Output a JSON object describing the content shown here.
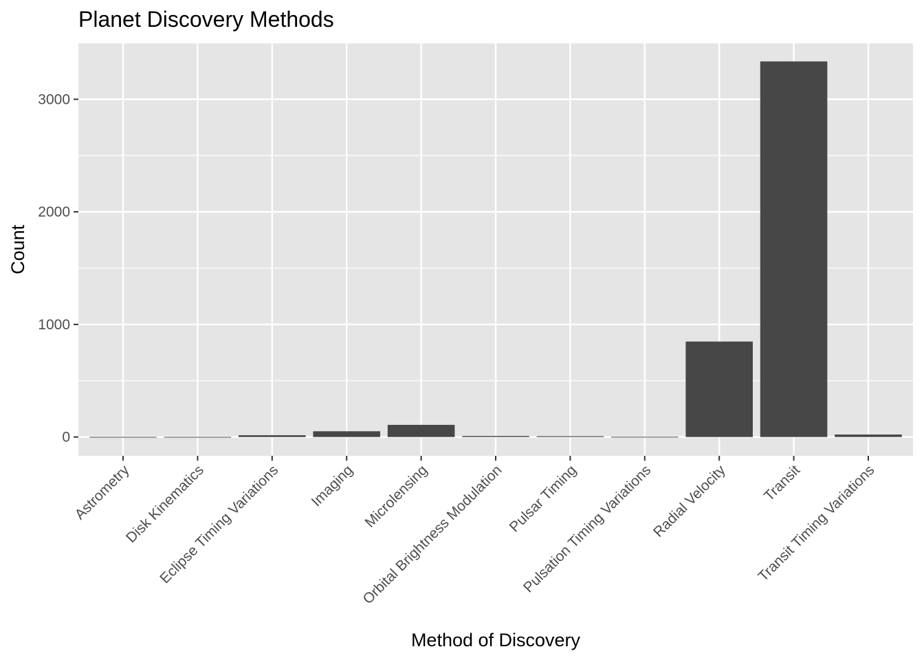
{
  "chart_data": {
    "type": "bar",
    "title": "Planet Discovery Methods",
    "xlabel": "Method of Discovery",
    "ylabel": "Count",
    "categories": [
      "Astrometry",
      "Disk Kinematics",
      "Eclipse Timing Variations",
      "Imaging",
      "Microlensing",
      "Orbital Brightness Modulation",
      "Pulsar Timing",
      "Pulsation Timing Variations",
      "Radial Velocity",
      "Transit",
      "Transit Timing Variations"
    ],
    "values": [
      1,
      1,
      16,
      51,
      108,
      9,
      7,
      2,
      848,
      3336,
      22
    ],
    "yticks": [
      0,
      1000,
      2000,
      3000
    ],
    "ylim": [
      -167,
      3503
    ],
    "grid": true,
    "legend": "none",
    "colors": {
      "bar": "#474747",
      "panel": "#e5e5e5",
      "grid": "#ffffff",
      "tick_text": "#4d4d4d"
    }
  }
}
